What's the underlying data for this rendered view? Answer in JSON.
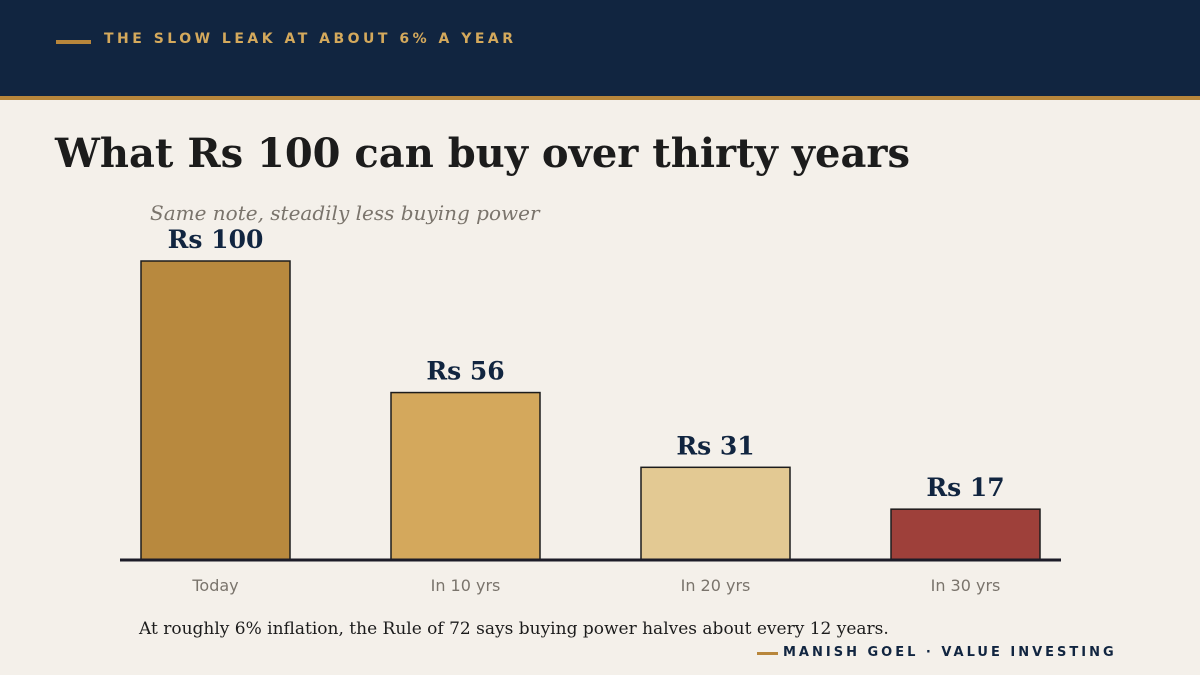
{
  "header": {
    "kicker": "THE SLOW LEAK AT ABOUT 6% A YEAR"
  },
  "title": "What Rs 100 can buy over thirty years",
  "subtitle": "Same note, steadily less buying power",
  "footnote": "At roughly 6% inflation, the Rule of 72 says buying power halves about every 12 years.",
  "brand": "MANISH GOEL  ·  VALUE INVESTING",
  "colors": {
    "navy": "#112540",
    "gold": "#b8863b",
    "background": "#f4f0ea"
  },
  "chart_data": {
    "type": "bar",
    "categories": [
      "Today",
      "In 10 yrs",
      "In 20 yrs",
      "In 30 yrs"
    ],
    "values": [
      100,
      56,
      31,
      17
    ],
    "data_labels": [
      "Rs 100",
      "Rs 56",
      "Rs 31",
      "Rs 17"
    ],
    "bar_colors": [
      "#b8893e",
      "#d4a85c",
      "#e3c993",
      "#9e403a"
    ],
    "title": "What Rs 100 can buy over thirty years",
    "subtitle": "Same note, steadily less buying power",
    "xlabel": "",
    "ylabel": "",
    "ylim": [
      0,
      100
    ],
    "grid": false,
    "legend": "none"
  }
}
